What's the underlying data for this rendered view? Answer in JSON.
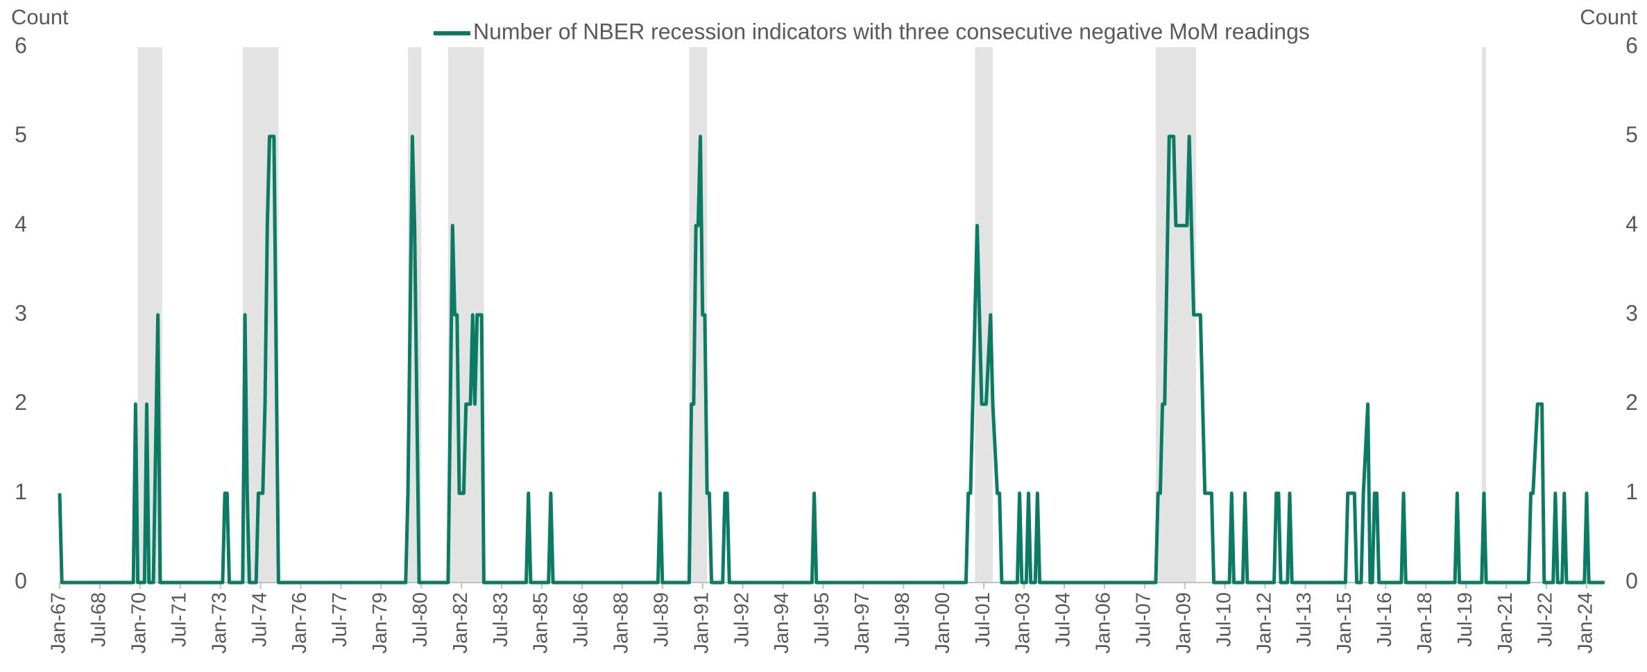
{
  "chart_data": {
    "type": "line",
    "legend": "top",
    "y_label": "Count",
    "y2_label": "Count",
    "ylim": [
      0,
      6
    ],
    "yticks": [
      0,
      1,
      2,
      3,
      4,
      5,
      6
    ],
    "y2lim": [
      0,
      6
    ],
    "y2ticks": [
      0,
      1,
      2,
      3,
      4,
      5,
      6
    ],
    "xlim": [
      1967,
      2024.7
    ],
    "xticks": [
      {
        "value": 1967,
        "label": "Jan-67"
      },
      {
        "value": 1968.5,
        "label": "Jul-68"
      },
      {
        "value": 1970,
        "label": "Jan-70"
      },
      {
        "value": 1971.5,
        "label": "Jul-71"
      },
      {
        "value": 1973,
        "label": "Jan-73"
      },
      {
        "value": 1974.5,
        "label": "Jul-74"
      },
      {
        "value": 1976,
        "label": "Jan-76"
      },
      {
        "value": 1977.5,
        "label": "Jul-77"
      },
      {
        "value": 1979,
        "label": "Jan-79"
      },
      {
        "value": 1980.5,
        "label": "Jul-80"
      },
      {
        "value": 1982,
        "label": "Jan-82"
      },
      {
        "value": 1983.5,
        "label": "Jul-83"
      },
      {
        "value": 1985,
        "label": "Jan-85"
      },
      {
        "value": 1986.5,
        "label": "Jul-86"
      },
      {
        "value": 1988,
        "label": "Jan-88"
      },
      {
        "value": 1989.5,
        "label": "Jul-89"
      },
      {
        "value": 1991,
        "label": "Jan-91"
      },
      {
        "value": 1992.5,
        "label": "Jul-92"
      },
      {
        "value": 1994,
        "label": "Jan-94"
      },
      {
        "value": 1995.5,
        "label": "Jul-95"
      },
      {
        "value": 1997,
        "label": "Jan-97"
      },
      {
        "value": 1998.5,
        "label": "Jul-98"
      },
      {
        "value": 2000,
        "label": "Jan-00"
      },
      {
        "value": 2001.5,
        "label": "Jul-01"
      },
      {
        "value": 2003,
        "label": "Jan-03"
      },
      {
        "value": 2004.5,
        "label": "Jul-04"
      },
      {
        "value": 2006,
        "label": "Jan-06"
      },
      {
        "value": 2007.5,
        "label": "Jul-07"
      },
      {
        "value": 2009,
        "label": "Jan-09"
      },
      {
        "value": 2010.5,
        "label": "Jul-10"
      },
      {
        "value": 2012,
        "label": "Jan-12"
      },
      {
        "value": 2013.5,
        "label": "Jul-13"
      },
      {
        "value": 2015,
        "label": "Jan-15"
      },
      {
        "value": 2016.5,
        "label": "Jul-16"
      },
      {
        "value": 2018,
        "label": "Jan-18"
      },
      {
        "value": 2019.5,
        "label": "Jul-19"
      },
      {
        "value": 2021,
        "label": "Jan-21"
      },
      {
        "value": 2022.5,
        "label": "Jul-22"
      },
      {
        "value": 2024,
        "label": "Jan-24"
      }
    ],
    "recession_color": "#e3e3e3",
    "recessions": [
      [
        1969.917,
        1970.833
      ],
      [
        1973.833,
        1975.167
      ],
      [
        1980.0,
        1980.5
      ],
      [
        1981.5,
        1982.833
      ],
      [
        1990.5,
        1991.167
      ],
      [
        2001.167,
        2001.833
      ],
      [
        2007.917,
        2009.417
      ],
      [
        2020.083,
        2020.25
      ]
    ],
    "x": [
      1967.0,
      1967.083,
      1969.75,
      1969.833,
      1969.917,
      1970.167,
      1970.25,
      1970.333,
      1970.5,
      1970.667,
      1970.75,
      1973.083,
      1973.167,
      1973.25,
      1973.333,
      1973.833,
      1973.917,
      1974.0,
      1974.083,
      1974.333,
      1974.417,
      1974.583,
      1974.667,
      1974.75,
      1974.833,
      1975.0,
      1975.167,
      1979.917,
      1980.0,
      1980.167,
      1980.25,
      1980.417,
      1981.5,
      1981.667,
      1981.75,
      1981.833,
      1981.917,
      1982.083,
      1982.167,
      1982.333,
      1982.417,
      1982.5,
      1982.583,
      1982.75,
      1982.833,
      1984.417,
      1984.5,
      1984.583,
      1985.25,
      1985.333,
      1985.417,
      1989.333,
      1989.417,
      1989.5,
      1990.5,
      1990.583,
      1990.667,
      1990.75,
      1990.833,
      1990.917,
      1991.0,
      1991.083,
      1991.167,
      1991.25,
      1991.333,
      1991.75,
      1991.833,
      1991.917,
      1992.0,
      1995.083,
      1995.167,
      1995.25,
      2000.833,
      2000.917,
      2001.0,
      2001.25,
      2001.417,
      2001.583,
      2001.75,
      2001.833,
      2002.0,
      2002.083,
      2002.167,
      2002.75,
      2002.833,
      2002.917,
      2003.083,
      2003.167,
      2003.25,
      2003.417,
      2003.5,
      2003.583,
      2007.917,
      2008.0,
      2008.083,
      2008.167,
      2008.25,
      2008.417,
      2008.583,
      2008.667,
      2009.083,
      2009.167,
      2009.25,
      2009.333,
      2009.583,
      2009.75,
      2010.0,
      2010.083,
      2010.667,
      2010.75,
      2010.833,
      2011.167,
      2011.25,
      2011.333,
      2012.333,
      2012.417,
      2012.5,
      2012.583,
      2012.833,
      2012.917,
      2013.0,
      2015.0,
      2015.083,
      2015.333,
      2015.417,
      2015.583,
      2015.667,
      2015.833,
      2015.917,
      2016.0,
      2016.083,
      2016.167,
      2016.25,
      2017.083,
      2017.167,
      2017.25,
      2019.083,
      2019.167,
      2019.25,
      2020.083,
      2020.167,
      2020.25,
      2021.833,
      2021.917,
      2022.0,
      2022.167,
      2022.333,
      2022.417,
      2022.75,
      2022.833,
      2022.917,
      2023.083,
      2023.167,
      2023.25,
      2023.917,
      2024.0,
      2024.083,
      2024.667
    ],
    "series": [
      {
        "name": "Number of NBER recession indicators with three consecutive negative MoM readings",
        "color": "#0a7c63",
        "values": [
          1,
          0,
          0,
          2,
          0,
          0,
          2,
          0,
          0,
          3,
          0,
          0,
          1,
          1,
          0,
          0,
          3,
          1,
          0,
          0,
          1,
          1,
          2,
          4,
          5,
          5,
          0,
          0,
          1,
          5,
          4,
          0,
          0,
          4,
          3,
          3,
          1,
          1,
          2,
          2,
          3,
          2,
          3,
          3,
          0,
          0,
          1,
          0,
          0,
          1,
          0,
          0,
          1,
          0,
          0,
          2,
          2,
          4,
          4,
          5,
          3,
          3,
          1,
          1,
          0,
          0,
          1,
          1,
          0,
          0,
          1,
          0,
          0,
          1,
          1,
          4,
          2,
          2,
          3,
          2,
          1,
          1,
          0,
          0,
          1,
          0,
          0,
          1,
          0,
          0,
          1,
          0,
          0,
          1,
          1,
          2,
          2,
          5,
          5,
          4,
          4,
          5,
          4,
          3,
          3,
          1,
          1,
          0,
          0,
          1,
          0,
          0,
          1,
          0,
          0,
          1,
          1,
          0,
          0,
          1,
          0,
          0,
          1,
          1,
          0,
          0,
          1,
          2,
          0,
          0,
          1,
          1,
          0,
          0,
          1,
          0,
          0,
          1,
          0,
          0,
          1,
          0,
          0,
          1,
          1,
          2,
          2,
          0,
          0,
          1,
          0,
          0,
          1,
          0,
          0,
          1,
          0,
          0
        ]
      }
    ]
  }
}
